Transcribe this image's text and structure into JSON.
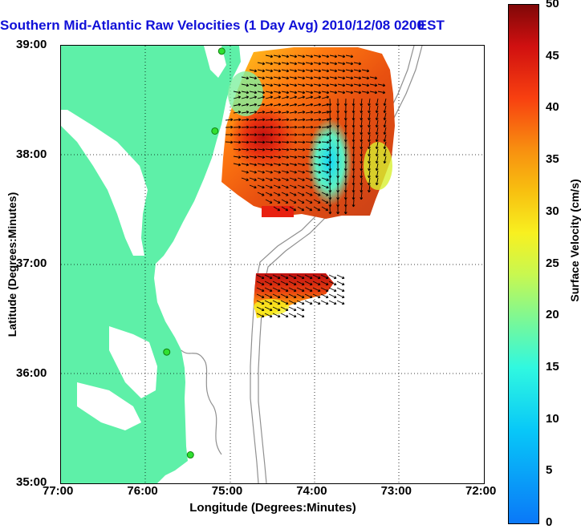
{
  "title": {
    "main": "Southern Mid-Atlantic Raw Velocities (1 Day Avg) 2010/12/08 0200",
    "timezone_suffix": "EST"
  },
  "map": {
    "lon_range": [
      -77,
      -72
    ],
    "lat_range": [
      35,
      39
    ],
    "x_ticks": [
      "77:00",
      "76:00",
      "75:00",
      "74:00",
      "73:00",
      "72:00"
    ],
    "y_ticks": [
      "39:00",
      "38:00",
      "37:00",
      "36:00",
      "35:00"
    ],
    "xlabel": "Longitude (Degrees:Minutes)",
    "ylabel": "Latitude (Degrees:Minutes)",
    "land_color": "#5ef0a8",
    "grid": "dotted",
    "stations": [
      {
        "lon": -75.1,
        "lat": 38.95
      },
      {
        "lon": -75.18,
        "lat": 38.22
      },
      {
        "lon": -75.75,
        "lat": 36.2
      },
      {
        "lon": -75.47,
        "lat": 35.26
      }
    ]
  },
  "colorbar": {
    "label": "Surface Velocity (cm/s)",
    "range": [
      0,
      50
    ],
    "ticks": [
      "50",
      "45",
      "40",
      "35",
      "30",
      "25",
      "20",
      "15",
      "10",
      "5",
      "0"
    ]
  }
}
